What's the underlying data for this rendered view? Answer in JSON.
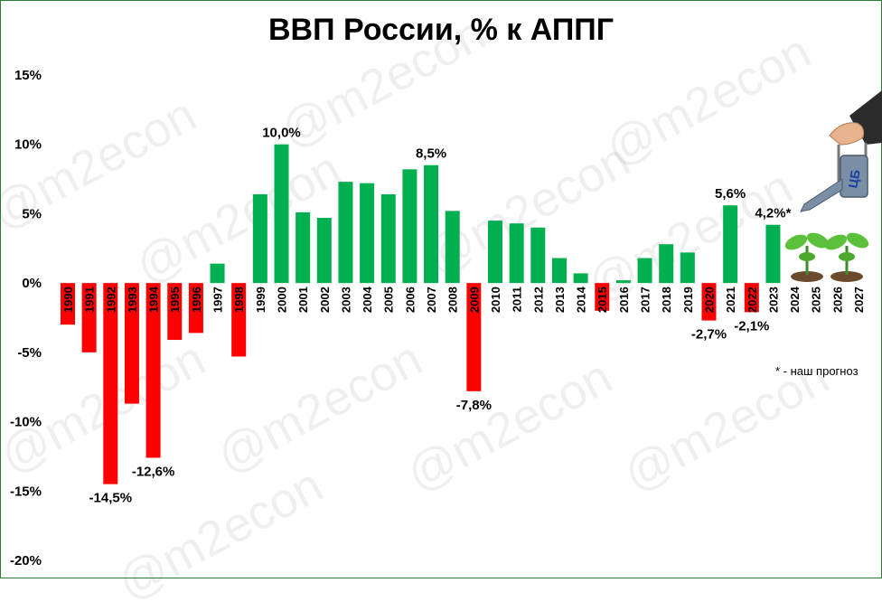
{
  "title": "ВВП России, % к АППГ",
  "watermark": "@m2econ",
  "note": "* - наш прогноз",
  "colors": {
    "positive": "#00b050",
    "negative": "#ff0000",
    "text": "#000000"
  },
  "icons": [
    "plant-sprout-icon",
    "watering-can-hand-icon"
  ],
  "can_label": "ЦБ",
  "chart_data": {
    "type": "bar",
    "title": "ВВП России, % к АППГ",
    "xlabel": "",
    "ylabel": "",
    "ylim": [
      -20,
      15
    ],
    "yticks": [
      "15%",
      "10%",
      "5%",
      "0%",
      "-5%",
      "-10%",
      "-15%",
      "-20%"
    ],
    "grid": false,
    "categories": [
      "1990",
      "1991",
      "1992",
      "1993",
      "1994",
      "1995",
      "1996",
      "1997",
      "1998",
      "1999",
      "2000",
      "2001",
      "2002",
      "2003",
      "2004",
      "2005",
      "2006",
      "2007",
      "2008",
      "2009",
      "2010",
      "2011",
      "2012",
      "2013",
      "2014",
      "2015",
      "2016",
      "2017",
      "2018",
      "2019",
      "2020",
      "2021",
      "2022",
      "2023",
      "2024",
      "2025",
      "2026",
      "2027"
    ],
    "values": [
      -3.0,
      -5.0,
      -14.5,
      -8.7,
      -12.6,
      -4.1,
      -3.6,
      1.4,
      -5.3,
      6.4,
      10.0,
      5.1,
      4.7,
      7.3,
      7.2,
      6.4,
      8.2,
      8.5,
      5.2,
      -7.8,
      4.5,
      4.3,
      4.0,
      1.8,
      0.7,
      -2.0,
      0.2,
      1.8,
      2.8,
      2.2,
      -2.7,
      5.6,
      -2.1,
      4.2,
      null,
      null,
      null,
      null
    ],
    "data_labels": [
      {
        "category": "1992",
        "text": "-14,5%"
      },
      {
        "category": "1994",
        "text": "-12,6%"
      },
      {
        "category": "2000",
        "text": "10,0%"
      },
      {
        "category": "2007",
        "text": "8,5%"
      },
      {
        "category": "2009",
        "text": "-7,8%"
      },
      {
        "category": "2020",
        "text": "-2,7%"
      },
      {
        "category": "2021",
        "text": "5,6%"
      },
      {
        "category": "2022",
        "text": "-2,1%"
      },
      {
        "category": "2023",
        "text": "4,2%*"
      }
    ]
  }
}
